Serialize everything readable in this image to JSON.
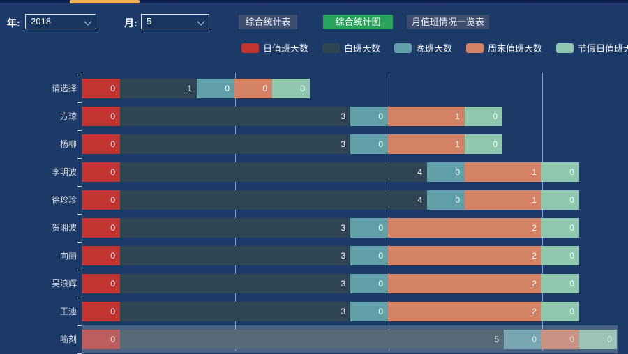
{
  "chrome": {
    "scroll_thumb_color": "#f0ae57"
  },
  "controls": {
    "year_label": "年:",
    "year_value": "2018",
    "month_label": "月:",
    "month_value": "5",
    "buttons": [
      {
        "label": "综合统计表",
        "variant": "default"
      },
      {
        "label": "综合统计图",
        "variant": "active"
      },
      {
        "label": "月值班情况一览表",
        "variant": "default"
      }
    ],
    "active_button_color": "#29a35c",
    "default_button_color": "#3e4e6f"
  },
  "chart_data": {
    "type": "bar",
    "orientation": "horizontal",
    "stacked": true,
    "legend_position": "top",
    "categories": [
      "请选择",
      "方琼",
      "杨柳",
      "李明波",
      "徐珍珍",
      "贺湘波",
      "向丽",
      "吴浪辉",
      "王迪",
      "喻刻"
    ],
    "series": [
      {
        "name": "日值班天数",
        "color": "#c23531",
        "values": [
          0,
          0,
          0,
          0,
          0,
          0,
          0,
          0,
          0,
          0
        ]
      },
      {
        "name": "白班天数",
        "color": "#2f4554",
        "values": [
          1,
          3,
          3,
          4,
          4,
          3,
          3,
          3,
          3,
          5
        ]
      },
      {
        "name": "晚班天数",
        "color": "#61a0a8",
        "values": [
          0,
          0,
          0,
          0,
          0,
          0,
          0,
          0,
          0,
          0
        ]
      },
      {
        "name": "周末值班天数",
        "color": "#d48265",
        "values": [
          0,
          1,
          1,
          1,
          1,
          2,
          2,
          2,
          2,
          0
        ]
      },
      {
        "name": "节假日值班天数",
        "color": "#91c7ae",
        "values": [
          0,
          0,
          0,
          0,
          0,
          0,
          0,
          0,
          0,
          0
        ]
      }
    ],
    "xlim": [
      0,
      7
    ],
    "gridline_values": [
      2,
      4,
      6
    ],
    "grid_on": true,
    "highlighted_row": "喻刻",
    "bar_label_position": "inside-right"
  }
}
